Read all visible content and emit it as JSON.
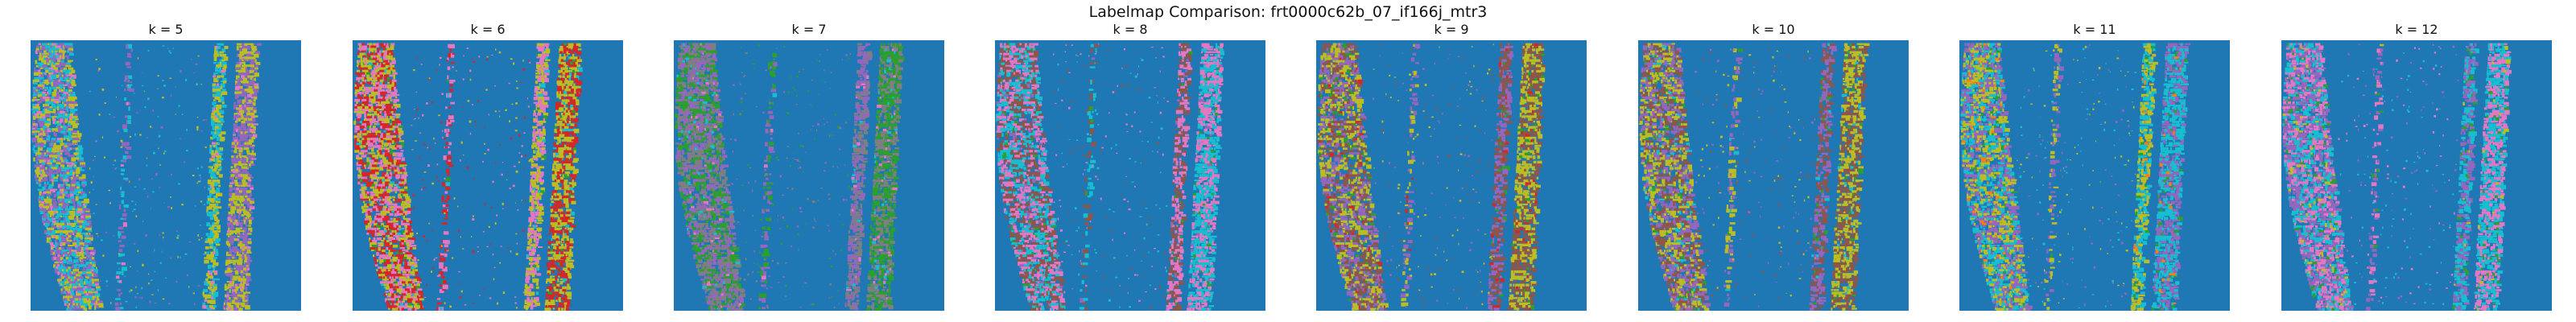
{
  "figure": {
    "title": "Labelmap Comparison: frt0000c62b_07_if166j_mtr3"
  },
  "colors": {
    "background_label": "#1f77b4",
    "palette": [
      "#bcbd22",
      "#9467bd",
      "#17becf",
      "#e377c2",
      "#d62728",
      "#2ca02c",
      "#7f7f7f",
      "#8c564b",
      "#ff7f0e"
    ]
  },
  "panels": [
    {
      "title": "k = 5",
      "dominant": [
        "#bcbd22",
        "#9467bd",
        "#17becf"
      ],
      "accents": [
        "#e377c2"
      ]
    },
    {
      "title": "k = 6",
      "dominant": [
        "#bcbd22",
        "#d62728",
        "#e377c2"
      ],
      "accents": [
        "#17becf",
        "#2ca02c"
      ]
    },
    {
      "title": "k = 7",
      "dominant": [
        "#7f7f7f",
        "#2ca02c",
        "#9467bd"
      ],
      "accents": [
        "#e377c2",
        "#17becf"
      ]
    },
    {
      "title": "k = 8",
      "dominant": [
        "#e377c2",
        "#17becf",
        "#8c564b"
      ],
      "accents": [
        "#9467bd",
        "#2ca02c"
      ]
    },
    {
      "title": "k = 9",
      "dominant": [
        "#8c564b",
        "#bcbd22",
        "#9467bd"
      ],
      "accents": [
        "#d62728",
        "#2ca02c"
      ]
    },
    {
      "title": "k = 10",
      "dominant": [
        "#8c564b",
        "#bcbd22",
        "#9467bd"
      ],
      "accents": [
        "#17becf",
        "#2ca02c"
      ]
    },
    {
      "title": "k = 11",
      "dominant": [
        "#17becf",
        "#9467bd",
        "#bcbd22"
      ],
      "accents": [
        "#2ca02c",
        "#ff7f0e"
      ]
    },
    {
      "title": "k = 12",
      "dominant": [
        "#17becf",
        "#e377c2",
        "#9467bd"
      ],
      "accents": [
        "#bcbd22",
        "#2ca02c"
      ]
    }
  ]
}
